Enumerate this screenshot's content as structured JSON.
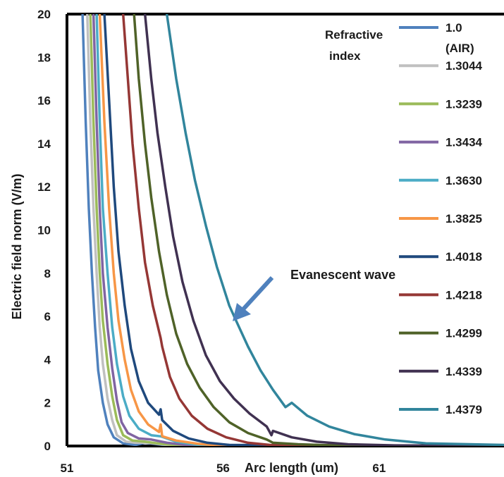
{
  "chart_data": {
    "type": "line",
    "title": "",
    "xlabel": "Arc length (um)",
    "ylabel": "Electric field norm (V/m)",
    "xlim": [
      51,
      65
    ],
    "ylim": [
      0,
      20
    ],
    "x_ticks": [
      "51",
      "56",
      "61"
    ],
    "y_ticks": [
      "0",
      "2",
      "4",
      "6",
      "8",
      "10",
      "12",
      "14",
      "16",
      "18",
      "20"
    ],
    "grid": false,
    "legend_title": "Refractive index",
    "legend_title_lines": [
      "Refractive",
      "index"
    ],
    "legend_position": "top-right",
    "annotation": "Evanescent wave",
    "series": [
      {
        "name": "1.0 (AIR)",
        "label_lines": [
          "1.0",
          "(AIR)"
        ],
        "color": "#4f81bd",
        "points": [
          [
            51.5,
            20
          ],
          [
            51.6,
            15
          ],
          [
            51.7,
            11
          ],
          [
            51.8,
            8
          ],
          [
            51.9,
            5.5
          ],
          [
            52.0,
            3.5
          ],
          [
            52.15,
            2
          ],
          [
            52.3,
            1
          ],
          [
            52.5,
            0.4
          ],
          [
            52.8,
            0.12
          ],
          [
            53.2,
            0.05
          ],
          [
            53.5,
            0.15
          ],
          [
            53.8,
            0.1
          ],
          [
            54.2,
            0.03
          ],
          [
            65,
            0
          ]
        ]
      },
      {
        "name": "1.3044",
        "color": "#c0c0c0",
        "points": [
          [
            51.65,
            20
          ],
          [
            51.75,
            15
          ],
          [
            51.85,
            11
          ],
          [
            51.95,
            8
          ],
          [
            52.05,
            5.5
          ],
          [
            52.15,
            3.8
          ],
          [
            52.3,
            2.2
          ],
          [
            52.45,
            1.2
          ],
          [
            52.6,
            0.5
          ],
          [
            52.9,
            0.2
          ],
          [
            53.2,
            0.15
          ],
          [
            53.6,
            0.15
          ],
          [
            54.2,
            0.05
          ],
          [
            65,
            0
          ]
        ]
      },
      {
        "name": "1.3239",
        "color": "#9bbb59",
        "points": [
          [
            51.75,
            20
          ],
          [
            51.85,
            15
          ],
          [
            51.95,
            11
          ],
          [
            52.05,
            8
          ],
          [
            52.15,
            5.8
          ],
          [
            52.3,
            3.8
          ],
          [
            52.45,
            2.3
          ],
          [
            52.6,
            1.2
          ],
          [
            52.8,
            0.5
          ],
          [
            53.1,
            0.25
          ],
          [
            53.5,
            0.2
          ],
          [
            54.0,
            0.1
          ],
          [
            54.6,
            0.03
          ],
          [
            65,
            0
          ]
        ]
      },
      {
        "name": "1.3434",
        "color": "#8064a2",
        "points": [
          [
            51.85,
            20
          ],
          [
            51.95,
            15
          ],
          [
            52.05,
            11
          ],
          [
            52.15,
            8
          ],
          [
            52.3,
            5.5
          ],
          [
            52.45,
            3.6
          ],
          [
            52.6,
            2.1
          ],
          [
            52.75,
            1.1
          ],
          [
            52.95,
            0.6
          ],
          [
            53.3,
            0.35
          ],
          [
            53.7,
            0.3
          ],
          [
            54.2,
            0.15
          ],
          [
            54.8,
            0.05
          ],
          [
            65,
            0
          ]
        ]
      },
      {
        "name": "1.3630",
        "color": "#4bacc6",
        "points": [
          [
            51.95,
            20
          ],
          [
            52.05,
            15
          ],
          [
            52.15,
            11
          ],
          [
            52.3,
            8
          ],
          [
            52.45,
            5.5
          ],
          [
            52.6,
            3.8
          ],
          [
            52.8,
            2.3
          ],
          [
            53.0,
            1.4
          ],
          [
            53.3,
            0.8
          ],
          [
            53.7,
            0.5
          ],
          [
            54.0,
            0.45
          ],
          [
            54.5,
            0.2
          ],
          [
            55.2,
            0.05
          ],
          [
            65,
            0
          ]
        ]
      },
      {
        "name": "1.3825",
        "color": "#f79646",
        "points": [
          [
            52.05,
            20
          ],
          [
            52.2,
            15
          ],
          [
            52.35,
            11
          ],
          [
            52.5,
            8
          ],
          [
            52.65,
            5.8
          ],
          [
            52.85,
            4
          ],
          [
            53.05,
            2.6
          ],
          [
            53.3,
            1.6
          ],
          [
            53.6,
            1.0
          ],
          [
            53.95,
            0.65
          ],
          [
            54.0,
            1.0
          ],
          [
            54.05,
            0.45
          ],
          [
            54.5,
            0.25
          ],
          [
            55.2,
            0.1
          ],
          [
            55.8,
            0.03
          ],
          [
            65,
            0
          ]
        ]
      },
      {
        "name": "1.4018",
        "color": "#1f497d",
        "points": [
          [
            52.2,
            20
          ],
          [
            52.35,
            16
          ],
          [
            52.5,
            12
          ],
          [
            52.65,
            9
          ],
          [
            52.85,
            6.5
          ],
          [
            53.05,
            4.5
          ],
          [
            53.3,
            3
          ],
          [
            53.6,
            2
          ],
          [
            53.95,
            1.45
          ],
          [
            54.0,
            1.7
          ],
          [
            54.05,
            1.2
          ],
          [
            54.4,
            0.7
          ],
          [
            54.9,
            0.35
          ],
          [
            55.5,
            0.15
          ],
          [
            56.2,
            0.05
          ],
          [
            65,
            0
          ]
        ]
      },
      {
        "name": "1.4218",
        "color": "#953735",
        "points": [
          [
            52.8,
            20
          ],
          [
            52.95,
            17
          ],
          [
            53.1,
            14
          ],
          [
            53.3,
            11
          ],
          [
            53.5,
            8.5
          ],
          [
            53.75,
            6.5
          ],
          [
            54.0,
            5.0
          ],
          [
            54.05,
            4.6
          ],
          [
            54.3,
            3.2
          ],
          [
            54.6,
            2.2
          ],
          [
            55.0,
            1.4
          ],
          [
            55.5,
            0.8
          ],
          [
            56.1,
            0.4
          ],
          [
            56.8,
            0.15
          ],
          [
            57.5,
            0.05
          ],
          [
            65,
            0
          ]
        ]
      },
      {
        "name": "1.4299",
        "color": "#4f6228",
        "points": [
          [
            53.15,
            20
          ],
          [
            53.3,
            17
          ],
          [
            53.5,
            14
          ],
          [
            53.7,
            11.5
          ],
          [
            53.95,
            9
          ],
          [
            54.2,
            7
          ],
          [
            54.5,
            5.2
          ],
          [
            54.85,
            3.8
          ],
          [
            55.25,
            2.7
          ],
          [
            55.7,
            1.8
          ],
          [
            56.2,
            1.1
          ],
          [
            56.8,
            0.6
          ],
          [
            57.4,
            0.3
          ],
          [
            57.6,
            0.15
          ],
          [
            58.4,
            0.08
          ],
          [
            59.5,
            0.03
          ],
          [
            65,
            0
          ]
        ]
      },
      {
        "name": "1.4339",
        "color": "#403151",
        "points": [
          [
            53.5,
            20
          ],
          [
            53.7,
            17
          ],
          [
            53.9,
            14.5
          ],
          [
            54.15,
            12
          ],
          [
            54.4,
            9.7
          ],
          [
            54.7,
            7.6
          ],
          [
            55.05,
            5.8
          ],
          [
            55.45,
            4.2
          ],
          [
            55.9,
            3
          ],
          [
            56.35,
            2.2
          ],
          [
            56.85,
            1.5
          ],
          [
            57.4,
            0.9
          ],
          [
            57.55,
            0.5
          ],
          [
            57.6,
            0.7
          ],
          [
            58.2,
            0.4
          ],
          [
            59.0,
            0.2
          ],
          [
            60.0,
            0.08
          ],
          [
            61.5,
            0.03
          ],
          [
            65,
            0
          ]
        ]
      },
      {
        "name": "1.4379",
        "color": "#31859c",
        "points": [
          [
            54.2,
            20
          ],
          [
            54.5,
            17
          ],
          [
            54.8,
            14.5
          ],
          [
            55.1,
            12.3
          ],
          [
            55.45,
            10.2
          ],
          [
            55.8,
            8.3
          ],
          [
            56.2,
            6.5
          ],
          [
            56.45,
            5.7
          ],
          [
            56.8,
            4.6
          ],
          [
            57.2,
            3.5
          ],
          [
            57.6,
            2.6
          ],
          [
            58.0,
            1.8
          ],
          [
            58.2,
            2.0
          ],
          [
            58.7,
            1.4
          ],
          [
            59.4,
            0.9
          ],
          [
            60.2,
            0.55
          ],
          [
            61.2,
            0.3
          ],
          [
            62.5,
            0.12
          ],
          [
            65,
            0.05
          ]
        ]
      }
    ]
  }
}
